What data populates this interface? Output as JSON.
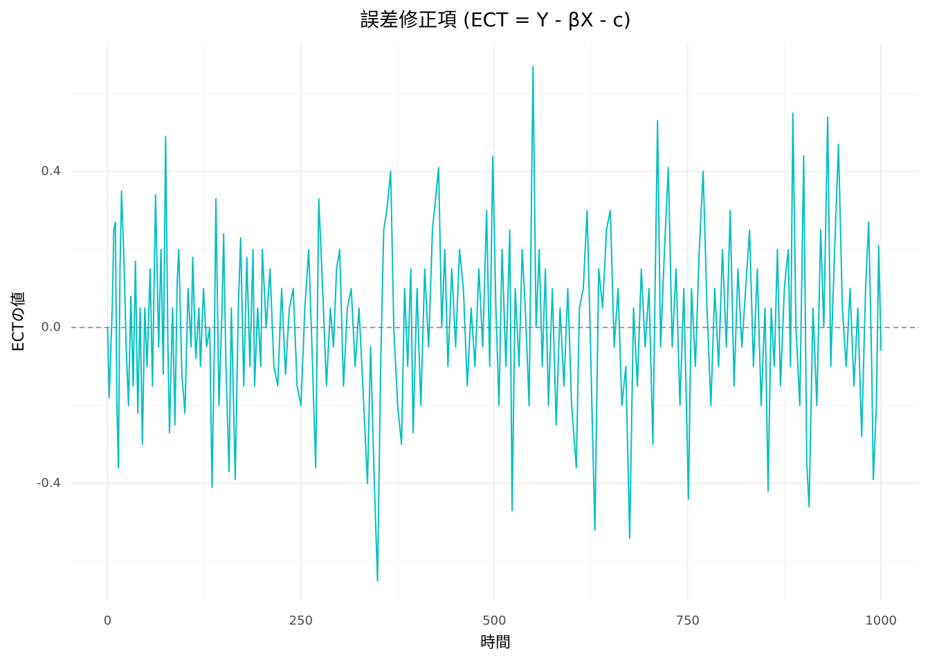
{
  "chart_data": {
    "type": "line",
    "title": "誤差修正項 (ECT = Y - βX - c)",
    "x_label": "時間",
    "y_label": "ECTの値",
    "xlim": [
      -47,
      1049
    ],
    "ylim": [
      -0.7,
      0.73
    ],
    "xticks": [
      0,
      250,
      500,
      750,
      1000
    ],
    "yticks": [
      -0.4,
      {
        "value": 0,
        "label": "0.0"
      },
      0.4
    ],
    "xminor": [
      125,
      375,
      625,
      875
    ],
    "yminor": [
      -0.6,
      -0.2,
      0.2,
      0.6
    ],
    "grid": true,
    "hline": 0,
    "series": [
      {
        "name": "ECT",
        "color": "#00BFC4",
        "x": [
          0,
          2,
          6,
          8,
          10,
          12,
          14,
          16,
          18,
          21,
          24,
          27,
          30,
          33,
          36,
          39,
          42,
          45,
          48,
          51,
          55,
          58,
          62,
          66,
          69,
          72,
          75,
          78,
          80,
          84,
          87,
          90,
          92,
          96,
          100,
          104,
          108,
          110,
          114,
          118,
          120,
          124,
          128,
          132,
          135,
          138,
          140,
          144,
          148,
          150,
          153,
          157,
          160,
          165,
          169,
          172,
          176,
          180,
          184,
          188,
          190,
          194,
          198,
          200,
          205,
          210,
          215,
          220,
          225,
          230,
          235,
          240,
          245,
          250,
          255,
          260,
          265,
          269,
          273,
          278,
          283,
          288,
          292,
          296,
          300,
          305,
          310,
          315,
          320,
          325,
          330,
          336,
          340,
          345,
          349,
          353,
          357,
          361,
          366,
          370,
          375,
          380,
          384,
          388,
          392,
          395,
          400,
          405,
          410,
          415,
          420,
          424,
          428,
          432,
          436,
          440,
          445,
          450,
          455,
          460,
          465,
          470,
          475,
          480,
          485,
          490,
          494,
          498,
          502,
          506,
          510,
          515,
          520,
          523,
          527,
          532,
          536,
          540,
          545,
          550,
          554,
          558,
          562,
          566,
          570,
          575,
          580,
          585,
          590,
          595,
          600,
          606,
          610,
          615,
          620,
          625,
          630,
          635,
          640,
          645,
          650,
          655,
          660,
          665,
          670,
          675,
          680,
          685,
          690,
          695,
          700,
          705,
          711,
          715,
          720,
          725,
          730,
          735,
          740,
          745,
          751,
          755,
          760,
          765,
          770,
          775,
          780,
          785,
          790,
          795,
          800,
          805,
          810,
          815,
          820,
          825,
          830,
          835,
          840,
          845,
          850,
          854,
          858,
          862,
          866,
          870,
          875,
          880,
          883,
          886,
          890,
          895,
          900,
          904,
          907,
          912,
          917,
          922,
          926,
          931,
          935,
          940,
          945,
          950,
          955,
          960,
          965,
          970,
          975,
          980,
          984,
          988,
          990,
          994,
          997,
          1000
        ],
        "values": [
          0,
          -0.18,
          0.05,
          0.25,
          0.27,
          -0.2,
          -0.36,
          0.15,
          0.35,
          0.18,
          -0.05,
          -0.2,
          0.08,
          -0.15,
          0.17,
          -0.22,
          0.05,
          -0.3,
          0.05,
          -0.1,
          0.15,
          -0.15,
          0.34,
          -0.05,
          0.2,
          -0.12,
          0.49,
          -0.05,
          -0.27,
          0.05,
          -0.25,
          0.12,
          0.2,
          -0.12,
          -0.22,
          0.1,
          -0.05,
          0.18,
          -0.08,
          0.05,
          -0.1,
          0.1,
          -0.05,
          0,
          -0.41,
          -0.05,
          0.33,
          -0.2,
          0.05,
          0.24,
          -0.1,
          -0.37,
          0.05,
          -0.39,
          0.05,
          0.23,
          -0.15,
          0.18,
          -0.1,
          0.2,
          -0.15,
          0.05,
          -0.1,
          0.2,
          0,
          0.15,
          -0.1,
          -0.15,
          0.1,
          -0.12,
          0.05,
          0.1,
          -0.15,
          -0.2,
          0.05,
          0.2,
          -0.1,
          -0.36,
          0.33,
          0.1,
          -0.15,
          0.05,
          -0.05,
          0.15,
          0.2,
          -0.15,
          0.05,
          0.1,
          -0.1,
          0.05,
          -0.15,
          -0.4,
          -0.05,
          -0.41,
          -0.65,
          -0.1,
          0.25,
          0.3,
          0.4,
          0,
          -0.2,
          -0.3,
          0.1,
          -0.1,
          0.15,
          -0.27,
          0.1,
          -0.2,
          0.15,
          -0.05,
          0.25,
          0.33,
          0.41,
          0,
          0.2,
          -0.1,
          0.15,
          -0.05,
          0.2,
          0.1,
          -0.15,
          0.05,
          -0.1,
          0.15,
          -0.05,
          0.3,
          -0.1,
          0.44,
          0.05,
          -0.2,
          0.2,
          -0.1,
          0.25,
          -0.47,
          0.1,
          -0.1,
          0.2,
          0.05,
          -0.2,
          0.67,
          0,
          0.2,
          -0.1,
          0.15,
          -0.2,
          0.1,
          -0.25,
          0.05,
          -0.15,
          0.1,
          -0.2,
          -0.36,
          0.05,
          0.1,
          0.3,
          -0.1,
          -0.52,
          0.15,
          0.05,
          0.25,
          0.3,
          -0.05,
          0.1,
          -0.2,
          -0.1,
          -0.54,
          0.05,
          -0.15,
          0.15,
          -0.05,
          0.1,
          -0.3,
          0.53,
          -0.05,
          0.2,
          0.41,
          -0.05,
          0.15,
          -0.2,
          0.1,
          -0.44,
          0.1,
          -0.1,
          0.2,
          0.4,
          0.05,
          -0.2,
          0.1,
          -0.1,
          0.2,
          -0.05,
          0.3,
          -0.15,
          0.15,
          -0.05,
          0.1,
          0.25,
          -0.1,
          0.15,
          -0.2,
          0.05,
          -0.42,
          0.05,
          -0.1,
          0.2,
          -0.15,
          0.1,
          0.2,
          -0.1,
          0.55,
          0,
          -0.2,
          0.44,
          -0.35,
          -0.46,
          0.05,
          -0.2,
          0.25,
          0,
          0.54,
          -0.1,
          0.2,
          0.47,
          0.05,
          -0.1,
          0.1,
          -0.15,
          0.05,
          -0.28,
          0.1,
          0.27,
          -0.1,
          -0.39,
          -0.2,
          0.21,
          -0.06
        ]
      }
    ]
  }
}
